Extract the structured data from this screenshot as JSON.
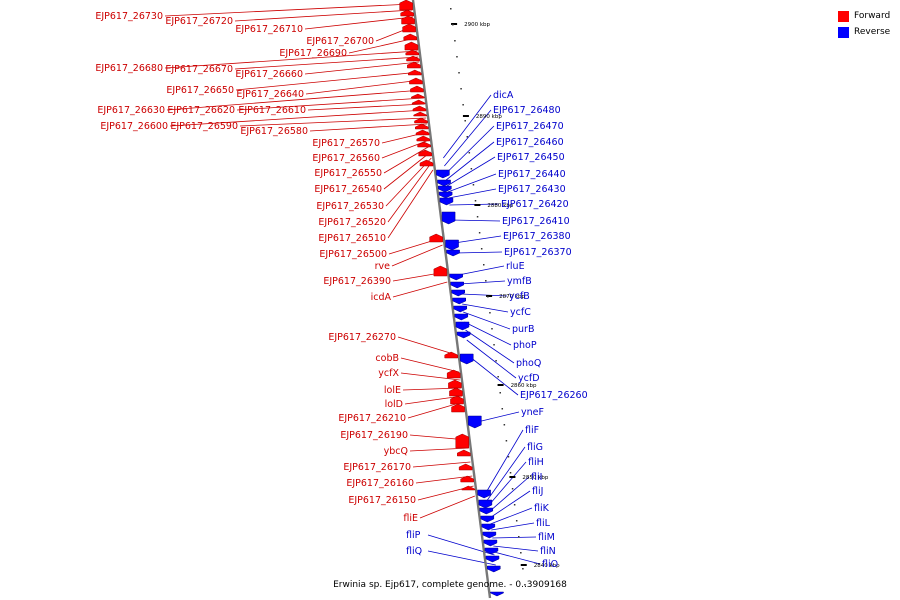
{
  "legend": {
    "forward_label": "Forward",
    "forward_color": "#ff0000",
    "reverse_label": "Reverse",
    "reverse_color": "#0000ff"
  },
  "caption": "Erwinia sp. Ejp617, complete genome. - 0..3909168",
  "ticks": [
    "2900 kbp",
    "2890 kbp",
    "2880 kbp",
    "2870 kbp",
    "2860 kbp",
    "2850 kbp",
    "2840 kbp"
  ],
  "forward_genes": [
    "EJP617_26730",
    "EJP617_26720",
    "EJP617_26710",
    "EJP617_26700",
    "EJP617_26690",
    "EJP617_26680",
    "EJP617_26670",
    "EJP617_26660",
    "EJP617_26650",
    "EJP617_26640",
    "EJP617_26630",
    "EJP617_26620",
    "EJP617_26610",
    "EJP617_26600",
    "EJP617_26590",
    "EJP617_26580",
    "EJP617_26570",
    "EJP617_26560",
    "EJP617_26550",
    "EJP617_26540",
    "EJP617_26530",
    "EJP617_26520",
    "EJP617_26510",
    "EJP617_26500",
    "rve",
    "EJP617_26390",
    "icdA",
    "EJP617_26270",
    "cobB",
    "ycfX",
    "lolE",
    "lolD",
    "EJP617_26210",
    "EJP617_26190",
    "ybcQ",
    "EJP617_26170",
    "EJP617_26160",
    "EJP617_26150",
    "fliE"
  ],
  "reverse_genes": [
    "dicA",
    "EJP617_26480",
    "EJP617_26470",
    "EJP617_26460",
    "EJP617_26450",
    "EJP617_26440",
    "EJP617_26430",
    "EJP617_26420",
    "EJP617_26410",
    "EJP617_26380",
    "EJP617_26370",
    "rluE",
    "ymfB",
    "ycfB",
    "ycfC",
    "purB",
    "phoP",
    "phoQ",
    "ycfD",
    "EJP617_26260",
    "yneF",
    "fliF",
    "fliG",
    "fliH",
    "fliI",
    "fliJ",
    "fliK",
    "fliL",
    "fliM",
    "fliN",
    "fliO",
    "fliP",
    "fliQ"
  ]
}
